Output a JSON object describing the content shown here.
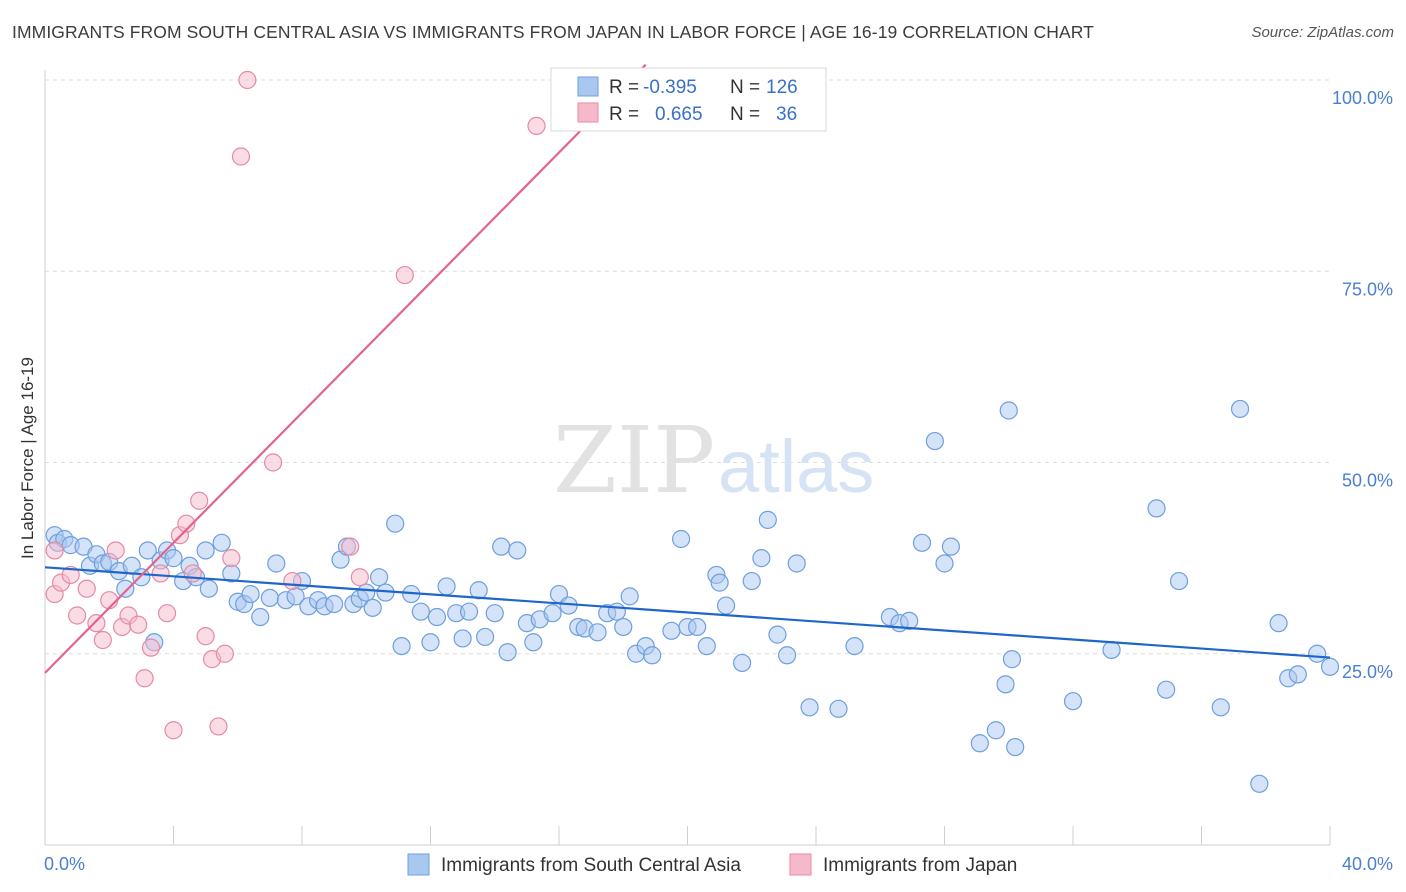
{
  "title": "IMMIGRANTS FROM SOUTH CENTRAL ASIA VS IMMIGRANTS FROM JAPAN IN LABOR FORCE | AGE 16-19 CORRELATION CHART",
  "source": "Source: ZipAtlas.com",
  "watermark": {
    "zip": "ZIP",
    "atlas": "atlas"
  },
  "colors": {
    "blue_fill": "#a9c8f0",
    "blue_stroke": "#6e9fde",
    "blue_line": "#1f66cc",
    "pink_fill": "#f6b9cb",
    "pink_stroke": "#e58aa6",
    "pink_line": "#e2648c",
    "tick_text": "#4a7fd0",
    "grid": "#dedede"
  },
  "chart_data": {
    "type": "scatter",
    "title": "IMMIGRANTS FROM SOUTH CENTRAL ASIA VS IMMIGRANTS FROM JAPAN IN LABOR FORCE | AGE 16-19 CORRELATION CHART",
    "ylabel": "In Labor Force | Age 16-19",
    "xlabel": "",
    "xlim": [
      0,
      40
    ],
    "ylim": [
      0,
      100
    ],
    "x_tick_labels": [
      "0.0%",
      "40.0%"
    ],
    "y_ticks": [
      25,
      50,
      75,
      100
    ],
    "y_tick_labels": [
      "25.0%",
      "50.0%",
      "75.0%",
      "100.0%"
    ],
    "grid": true,
    "legend_position": "top-center",
    "legend": [
      {
        "r_label": "R =",
        "r_value": "-0.395",
        "n_label": "N =",
        "n_value": "126"
      },
      {
        "r_label": "R =",
        "r_value": "0.665",
        "n_label": "N =",
        "n_value": "36"
      }
    ],
    "series": [
      {
        "name": "Immigrants from South Central Asia",
        "color": "#a9c8f0",
        "trend": {
          "x": [
            0,
            40
          ],
          "y": [
            36.3,
            24.5
          ]
        },
        "points": [
          [
            0.3,
            40.5
          ],
          [
            0.4,
            39.5
          ],
          [
            0.6,
            40.0
          ],
          [
            0.8,
            39.2
          ],
          [
            1.2,
            39.0
          ],
          [
            1.4,
            36.5
          ],
          [
            1.6,
            38.0
          ],
          [
            1.8,
            36.8
          ],
          [
            2.0,
            37.0
          ],
          [
            2.3,
            35.8
          ],
          [
            2.5,
            33.5
          ],
          [
            2.7,
            36.5
          ],
          [
            3.0,
            35.0
          ],
          [
            3.2,
            38.5
          ],
          [
            3.4,
            26.5
          ],
          [
            3.6,
            37.2
          ],
          [
            3.8,
            38.5
          ],
          [
            4.0,
            37.5
          ],
          [
            4.3,
            34.5
          ],
          [
            4.5,
            36.5
          ],
          [
            4.7,
            35.0
          ],
          [
            5.0,
            38.5
          ],
          [
            5.1,
            33.5
          ],
          [
            5.5,
            39.5
          ],
          [
            5.8,
            35.5
          ],
          [
            6.0,
            31.8
          ],
          [
            6.2,
            31.5
          ],
          [
            6.4,
            32.8
          ],
          [
            6.7,
            29.8
          ],
          [
            7.0,
            32.3
          ],
          [
            7.2,
            36.8
          ],
          [
            7.5,
            32.0
          ],
          [
            7.8,
            32.5
          ],
          [
            8.0,
            34.5
          ],
          [
            8.2,
            31.2
          ],
          [
            8.5,
            32.0
          ],
          [
            8.7,
            31.2
          ],
          [
            9.0,
            31.5
          ],
          [
            9.2,
            37.3
          ],
          [
            9.4,
            39.0
          ],
          [
            9.6,
            31.5
          ],
          [
            9.8,
            32.2
          ],
          [
            10.0,
            33.0
          ],
          [
            10.2,
            31.0
          ],
          [
            10.4,
            35.0
          ],
          [
            10.6,
            33.0
          ],
          [
            10.9,
            42.0
          ],
          [
            11.1,
            26.0
          ],
          [
            11.4,
            32.8
          ],
          [
            11.7,
            30.5
          ],
          [
            12.0,
            26.5
          ],
          [
            12.2,
            29.8
          ],
          [
            12.5,
            33.8
          ],
          [
            12.8,
            30.3
          ],
          [
            13.0,
            27.0
          ],
          [
            13.2,
            30.5
          ],
          [
            13.5,
            33.3
          ],
          [
            13.7,
            27.2
          ],
          [
            14.0,
            30.3
          ],
          [
            14.2,
            39.0
          ],
          [
            14.4,
            25.2
          ],
          [
            14.7,
            38.5
          ],
          [
            15.0,
            29.0
          ],
          [
            15.2,
            26.5
          ],
          [
            15.4,
            29.5
          ],
          [
            15.8,
            30.3
          ],
          [
            16.0,
            32.8
          ],
          [
            16.3,
            31.3
          ],
          [
            16.6,
            28.5
          ],
          [
            16.8,
            28.3
          ],
          [
            17.2,
            27.8
          ],
          [
            17.5,
            30.3
          ],
          [
            17.8,
            30.5
          ],
          [
            18.0,
            28.5
          ],
          [
            18.2,
            32.5
          ],
          [
            18.4,
            25.0
          ],
          [
            18.7,
            26.0
          ],
          [
            18.9,
            24.8
          ],
          [
            19.5,
            28.0
          ],
          [
            19.8,
            40.0
          ],
          [
            20.0,
            28.5
          ],
          [
            20.3,
            28.5
          ],
          [
            20.6,
            26.0
          ],
          [
            20.9,
            35.3
          ],
          [
            21.0,
            34.3
          ],
          [
            21.2,
            31.3
          ],
          [
            21.7,
            23.8
          ],
          [
            22.0,
            34.5
          ],
          [
            22.3,
            37.5
          ],
          [
            22.5,
            42.5
          ],
          [
            22.8,
            27.5
          ],
          [
            23.1,
            24.8
          ],
          [
            23.4,
            36.8
          ],
          [
            23.8,
            18.0
          ],
          [
            24.7,
            17.8
          ],
          [
            25.2,
            26.0
          ],
          [
            26.3,
            29.8
          ],
          [
            26.6,
            29.0
          ],
          [
            26.9,
            29.3
          ],
          [
            27.3,
            39.5
          ],
          [
            27.7,
            52.8
          ],
          [
            28.0,
            36.8
          ],
          [
            28.2,
            39.0
          ],
          [
            29.1,
            13.3
          ],
          [
            29.6,
            15.0
          ],
          [
            29.9,
            21.0
          ],
          [
            30.1,
            24.3
          ],
          [
            30.0,
            56.8
          ],
          [
            30.2,
            12.8
          ],
          [
            32.0,
            18.8
          ],
          [
            33.2,
            25.5
          ],
          [
            34.6,
            44.0
          ],
          [
            34.9,
            20.3
          ],
          [
            35.3,
            34.5
          ],
          [
            36.6,
            18.0
          ],
          [
            37.2,
            57.0
          ],
          [
            37.8,
            8.0
          ],
          [
            38.4,
            29.0
          ],
          [
            38.7,
            21.8
          ],
          [
            39.0,
            22.3
          ],
          [
            39.6,
            25.0
          ],
          [
            40.0,
            23.3
          ]
        ]
      },
      {
        "name": "Immigrants from Japan",
        "color": "#f6b9cb",
        "trend": {
          "x": [
            0,
            18.7
          ],
          "y": [
            22.5,
            102.0
          ]
        },
        "points": [
          [
            0.3,
            38.5
          ],
          [
            0.3,
            32.8
          ],
          [
            0.5,
            34.3
          ],
          [
            0.8,
            35.3
          ],
          [
            1.0,
            30.0
          ],
          [
            1.3,
            33.5
          ],
          [
            1.6,
            29.0
          ],
          [
            1.8,
            26.8
          ],
          [
            2.0,
            32.0
          ],
          [
            2.2,
            38.5
          ],
          [
            2.4,
            28.5
          ],
          [
            2.6,
            30.0
          ],
          [
            2.9,
            28.8
          ],
          [
            3.1,
            21.8
          ],
          [
            3.3,
            25.8
          ],
          [
            3.6,
            35.5
          ],
          [
            3.8,
            30.3
          ],
          [
            4.0,
            15.0
          ],
          [
            4.2,
            40.5
          ],
          [
            4.4,
            42.0
          ],
          [
            4.6,
            35.5
          ],
          [
            4.8,
            45.0
          ],
          [
            5.0,
            27.3
          ],
          [
            5.2,
            24.3
          ],
          [
            5.4,
            15.5
          ],
          [
            5.6,
            25.0
          ],
          [
            5.8,
            37.5
          ],
          [
            6.1,
            90.0
          ],
          [
            6.3,
            100.0
          ],
          [
            7.1,
            50.0
          ],
          [
            7.7,
            34.5
          ],
          [
            9.5,
            39.0
          ],
          [
            9.8,
            35.0
          ],
          [
            11.2,
            74.5
          ],
          [
            15.3,
            94.0
          ],
          [
            16.4,
            100.0
          ]
        ]
      }
    ]
  }
}
